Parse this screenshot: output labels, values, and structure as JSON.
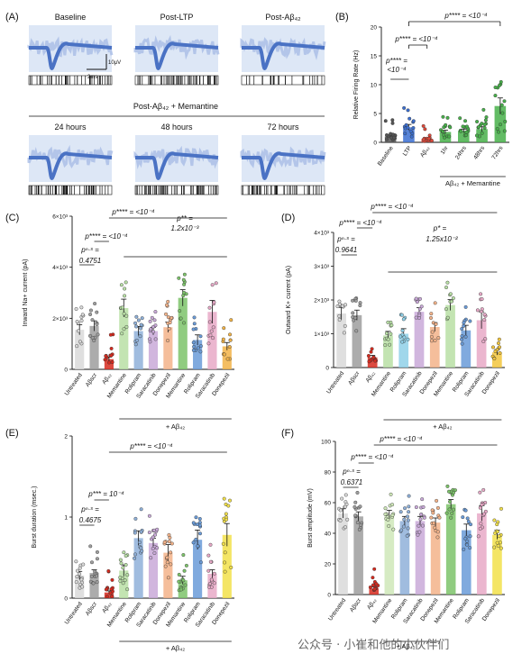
{
  "panels": {
    "A": "(A)",
    "B": "(B)",
    "C": "(C)",
    "D": "(D)",
    "E": "(E)",
    "F": "(F)"
  },
  "panel_a": {
    "traces_row1": [
      "Baseline",
      "Post-LTP",
      "Post-Aβ42"
    ],
    "row2_title": "Post-Aβ42 + Memantine",
    "traces_row2": [
      "24 hours",
      "48 hours",
      "72 hours"
    ],
    "scale_y": "10μV",
    "scale_x": "2ms",
    "trace_color": "#4a72c4"
  },
  "chart_data": [
    {
      "id": "B",
      "type": "bar",
      "ylabel": "Relative Firing Rate (Hz)",
      "ylim": [
        0,
        20
      ],
      "yticks": [
        "0",
        "5",
        "10",
        "15",
        "20"
      ],
      "categories": [
        "Baseline",
        "LTP",
        "Aβ42",
        "1hr",
        "24hrs",
        "48hrs",
        "72hrs"
      ],
      "values": [
        1.0,
        2.6,
        0.6,
        1.8,
        2.0,
        2.3,
        6.3
      ],
      "errors": [
        0.1,
        0.5,
        0.2,
        0.3,
        0.3,
        0.4,
        1.4
      ],
      "colors": [
        "#555555",
        "#3b6fd1",
        "#e0493a",
        "#48b04a",
        "#48b04a",
        "#48b04a",
        "#48b04a"
      ],
      "group_label": "Aβ42 + Memantine",
      "annotations": [
        "p**** = <10⁻⁴",
        "p**** = <10⁻⁴",
        "p**** =",
        "<10⁻⁴"
      ]
    },
    {
      "id": "C",
      "type": "bar",
      "ylabel": "Inward Na+ current (pA)",
      "ylim": [
        0,
        6000
      ],
      "yticks": [
        "0",
        "2×10³",
        "4×10³",
        "6×10³"
      ],
      "categories": [
        "Untreated",
        "Aβ_scr",
        "Aβ42",
        "Memantine",
        "Rolipram",
        "Saracatinib",
        "Donepezil",
        "Memantine",
        "Rolipram",
        "Saracatinib",
        "Donepezil"
      ],
      "values": [
        1550,
        1700,
        400,
        2400,
        1500,
        1500,
        1650,
        2800,
        1150,
        2250,
        900
      ],
      "errors": [
        200,
        200,
        80,
        350,
        180,
        150,
        200,
        320,
        200,
        450,
        150
      ],
      "colors": [
        "#d9d9d9",
        "#9e9e9e",
        "#d62a1e",
        "#b8dfa5",
        "#8fb0d9",
        "#c9a9d8",
        "#f3b38a",
        "#7dc36a",
        "#6a9bd8",
        "#e7a9c7",
        "#f2b347"
      ],
      "group_label": "+ Aβ42",
      "annotations": [
        "p**** = <10⁻⁴",
        "p**** = <10⁻⁴",
        "pⁿ·ˢ =",
        "0.4751",
        "p** =",
        "1.2x10⁻³"
      ]
    },
    {
      "id": "D",
      "type": "bar",
      "ylabel": "Outward K+ current (pA)",
      "ylim": [
        0,
        4000
      ],
      "yticks": [
        "0",
        "1×10³",
        "2×10³",
        "3×10³",
        "4×10³"
      ],
      "categories": [
        "Untreated",
        "Aβ_scr",
        "Aβ42",
        "Memantine",
        "Rolipram",
        "Saracatinib",
        "Donepezil",
        "Memantine",
        "Rolipram",
        "Saracatinib",
        "Donepezil"
      ],
      "values": [
        1600,
        1550,
        300,
        950,
        1000,
        1650,
        1200,
        1850,
        1100,
        1400,
        450
      ],
      "errors": [
        180,
        150,
        60,
        120,
        150,
        120,
        130,
        160,
        150,
        250,
        80
      ],
      "colors": [
        "#d9d9d9",
        "#9e9e9e",
        "#d62a1e",
        "#b8dfa5",
        "#8fd0e8",
        "#c9a9d8",
        "#f3b38a",
        "#b8dfa5",
        "#6a9bd8",
        "#e7a9c7",
        "#f2c53d"
      ],
      "group_label": "+ Aβ42",
      "annotations": [
        "p**** = <10⁻⁴",
        "p**** = <10⁻⁴",
        "pⁿ·ˢ =",
        "0.9641",
        "p* =",
        "1.25x10⁻²"
      ]
    },
    {
      "id": "E",
      "type": "bar",
      "ylabel": "Burst duration (msec.)",
      "ylim": [
        0,
        2
      ],
      "yticks": [
        "0",
        "1",
        "2"
      ],
      "categories": [
        "Untreated",
        "Aβ_scr",
        "Aβ42",
        "Memantine",
        "Rolipram",
        "Saracatinib",
        "Donepezil",
        "Memantine",
        "Rolipram",
        "Saracatinib",
        "Donepezil"
      ],
      "values": [
        0.28,
        0.31,
        0.07,
        0.34,
        0.74,
        0.68,
        0.56,
        0.22,
        0.72,
        0.3,
        0.78
      ],
      "errors": [
        0.05,
        0.04,
        0.02,
        0.07,
        0.09,
        0.06,
        0.1,
        0.05,
        0.12,
        0.05,
        0.14
      ],
      "colors": [
        "#d9d9d9",
        "#9e9e9e",
        "#d62a1e",
        "#b8dfa5",
        "#8fb0d9",
        "#c9a9d8",
        "#f3b38a",
        "#7dc36a",
        "#6a9bd8",
        "#e7a9c7",
        "#f2e04a"
      ],
      "group_label": "+ Aβ42",
      "annotations": [
        "p**** = <10⁻⁴",
        "p*** = 10⁻⁴",
        "pⁿ·ˢ =",
        "0.4675"
      ]
    },
    {
      "id": "F",
      "type": "bar",
      "ylabel": "Burst amplitude (mV)",
      "ylim": [
        0,
        100
      ],
      "yticks": [
        "0",
        "20",
        "40",
        "60",
        "80",
        "100"
      ],
      "categories": [
        "Untreated",
        "Aβ_scr",
        "Aβ42",
        "Memantine",
        "Rolipram",
        "Saracatinib",
        "Donepezil",
        "Memantine",
        "Rolipram",
        "Saracatinib",
        "Donepezil"
      ],
      "values": [
        53,
        51,
        4,
        52,
        48,
        48,
        47,
        59,
        42,
        53,
        39
      ],
      "errors": [
        3,
        3,
        1,
        3,
        3,
        3,
        3,
        3,
        4,
        5,
        3
      ],
      "colors": [
        "#d9d9d9",
        "#9e9e9e",
        "#d62a1e",
        "#cfe8b8",
        "#8fb0d9",
        "#c9a9d8",
        "#f3b38a",
        "#7dc36a",
        "#6a9bd8",
        "#e7a9c7",
        "#f2e04a"
      ],
      "group_label": "+ Aβ42",
      "annotations": [
        "p**** = <10⁻⁴",
        "p**** = <10⁻⁴",
        "pⁿ·ˢ =",
        "0.6371"
      ]
    }
  ],
  "watermark": "公众号 · 小崔和他的小伙伴们"
}
